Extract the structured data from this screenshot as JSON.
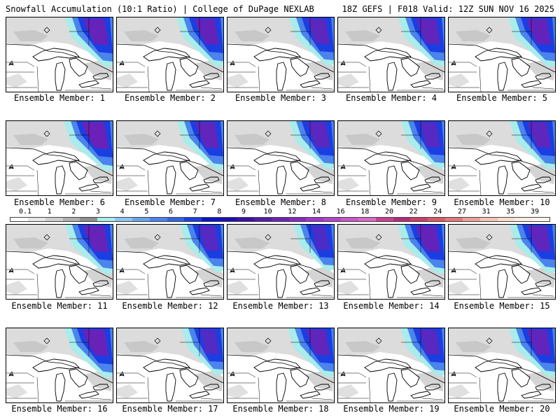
{
  "header": {
    "left": "Snowfall Accumulation (10:1 Ratio) | College of DuPage NEXLAB",
    "right": "18Z GEFS | F018 Valid: 12Z SUN NOV 16 2025"
  },
  "colorbar": {
    "labels": [
      "0.1",
      "1",
      "2",
      "3",
      "4",
      "5",
      "6",
      "7",
      "8",
      "9",
      "10",
      "12",
      "14",
      "16",
      "18",
      "20",
      "22",
      "24",
      "27",
      "31",
      "35",
      "39"
    ],
    "colors": [
      "#ffffff",
      "#e6e6e6",
      "#cfcfcf",
      "#b0b0b0",
      "#8f8f8f",
      "#a8ecec",
      "#8cc4f2",
      "#6aa4ec",
      "#4a84ec",
      "#3264e6",
      "#1a3ee2",
      "#0a14c8",
      "#1e0eb4",
      "#3c10a8",
      "#561aa8",
      "#7020b4",
      "#8a28c0",
      "#a236c8",
      "#b644c8",
      "#c858c8",
      "#d86ac6",
      "#c84090",
      "#b22c7c",
      "#c8406a",
      "#d85a6a",
      "#e4787a",
      "#eea098",
      "#f4c4b4",
      "#f8dccc",
      "#fcebe0",
      "#fff4ee"
    ]
  },
  "members": [
    {
      "caption": "Ensemble Member: 1",
      "heavy": 0.9
    },
    {
      "caption": "Ensemble Member: 2",
      "heavy": 0.85
    },
    {
      "caption": "Ensemble Member: 3",
      "heavy": 0.7
    },
    {
      "caption": "Ensemble Member: 4",
      "heavy": 0.8
    },
    {
      "caption": "Ensemble Member: 5",
      "heavy": 0.85
    },
    {
      "caption": "Ensemble Member: 6",
      "heavy": 1.0
    },
    {
      "caption": "Ensemble Member: 7",
      "heavy": 0.8
    },
    {
      "caption": "Ensemble Member: 8",
      "heavy": 0.7
    },
    {
      "caption": "Ensemble Member: 9",
      "heavy": 0.6
    },
    {
      "caption": "Ensemble Member: 10",
      "heavy": 0.75
    },
    {
      "caption": "Ensemble Member: 11",
      "heavy": 0.9
    },
    {
      "caption": "Ensemble Member: 12",
      "heavy": 0.6
    },
    {
      "caption": "Ensemble Member: 13",
      "heavy": 0.4
    },
    {
      "caption": "Ensemble Member: 14",
      "heavy": 0.85
    },
    {
      "caption": "Ensemble Member: 15",
      "heavy": 0.75
    },
    {
      "caption": "Ensemble Member: 16",
      "heavy": 0.95
    },
    {
      "caption": "Ensemble Member: 17",
      "heavy": 0.5
    },
    {
      "caption": "Ensemble Member: 18",
      "heavy": 0.8
    },
    {
      "caption": "Ensemble Member: 19",
      "heavy": 0.65
    },
    {
      "caption": "Ensemble Member: 20",
      "heavy": 0.8
    }
  ]
}
